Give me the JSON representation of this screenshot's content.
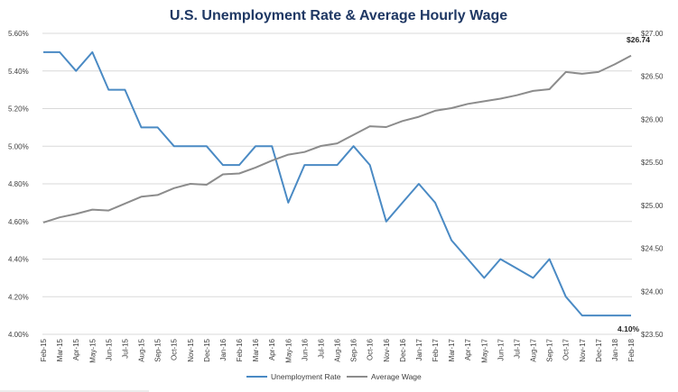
{
  "colors": {
    "unemployment": "#4a8ac4",
    "wage": "#8c8c8c",
    "title": "#1f3864",
    "grid": "#d9d9d9"
  },
  "chart_data": {
    "type": "line",
    "title": "U.S. Unemployment Rate & Average Hourly Wage",
    "categories": [
      "Feb-15",
      "Mar-15",
      "Apr-15",
      "May-15",
      "Jun-15",
      "Jul-15",
      "Aug-15",
      "Sep-15",
      "Oct-15",
      "Nov-15",
      "Dec-15",
      "Jan-16",
      "Feb-16",
      "Mar-16",
      "Apr-16",
      "May-16",
      "Jun-16",
      "Jul-16",
      "Aug-16",
      "Sep-16",
      "Oct-16",
      "Nov-16",
      "Dec-16",
      "Jan-17",
      "Feb-17",
      "Mar-17",
      "Apr-17",
      "May-17",
      "Jun-17",
      "Jul-17",
      "Aug-17",
      "Sep-17",
      "Oct-17",
      "Nov-17",
      "Dec-17",
      "Jan-18",
      "Feb-18"
    ],
    "series": [
      {
        "name": "Unemployment Rate",
        "axis": "left",
        "values": [
          5.5,
          5.5,
          5.4,
          5.5,
          5.3,
          5.3,
          5.1,
          5.1,
          5.0,
          5.0,
          5.0,
          4.9,
          4.9,
          5.0,
          5.0,
          4.7,
          4.9,
          4.9,
          4.9,
          5.0,
          4.9,
          4.6,
          4.7,
          4.8,
          4.7,
          4.5,
          4.4,
          4.3,
          4.4,
          4.35,
          4.3,
          4.4,
          4.2,
          4.1,
          4.1,
          4.1,
          4.1
        ]
      },
      {
        "name": "Average Wage",
        "axis": "right",
        "values": [
          24.8,
          24.86,
          24.9,
          24.95,
          24.94,
          25.02,
          25.1,
          25.12,
          25.2,
          25.25,
          25.24,
          25.36,
          25.37,
          25.44,
          25.52,
          25.59,
          25.62,
          25.69,
          25.72,
          25.82,
          25.92,
          25.91,
          25.98,
          26.03,
          26.1,
          26.13,
          26.18,
          26.21,
          26.24,
          26.28,
          26.33,
          26.35,
          26.55,
          26.53,
          26.55,
          26.64,
          26.74
        ]
      }
    ],
    "yleft": {
      "min": 4.0,
      "max": 5.6,
      "step": 0.2,
      "ticks": [
        "4.00%",
        "4.20%",
        "4.40%",
        "4.60%",
        "4.80%",
        "5.00%",
        "5.20%",
        "5.40%",
        "5.60%"
      ]
    },
    "yright": {
      "min": 23.5,
      "max": 27.0,
      "step": 0.5,
      "ticks": [
        "$23.50",
        "$24.00",
        "$24.50",
        "$25.00",
        "$25.50",
        "$26.00",
        "$26.50",
        "$27.00"
      ]
    },
    "grid": true,
    "legend_position": "bottom",
    "annotations": {
      "wage_last": "$26.74",
      "unemployment_last": "4.10%"
    }
  }
}
